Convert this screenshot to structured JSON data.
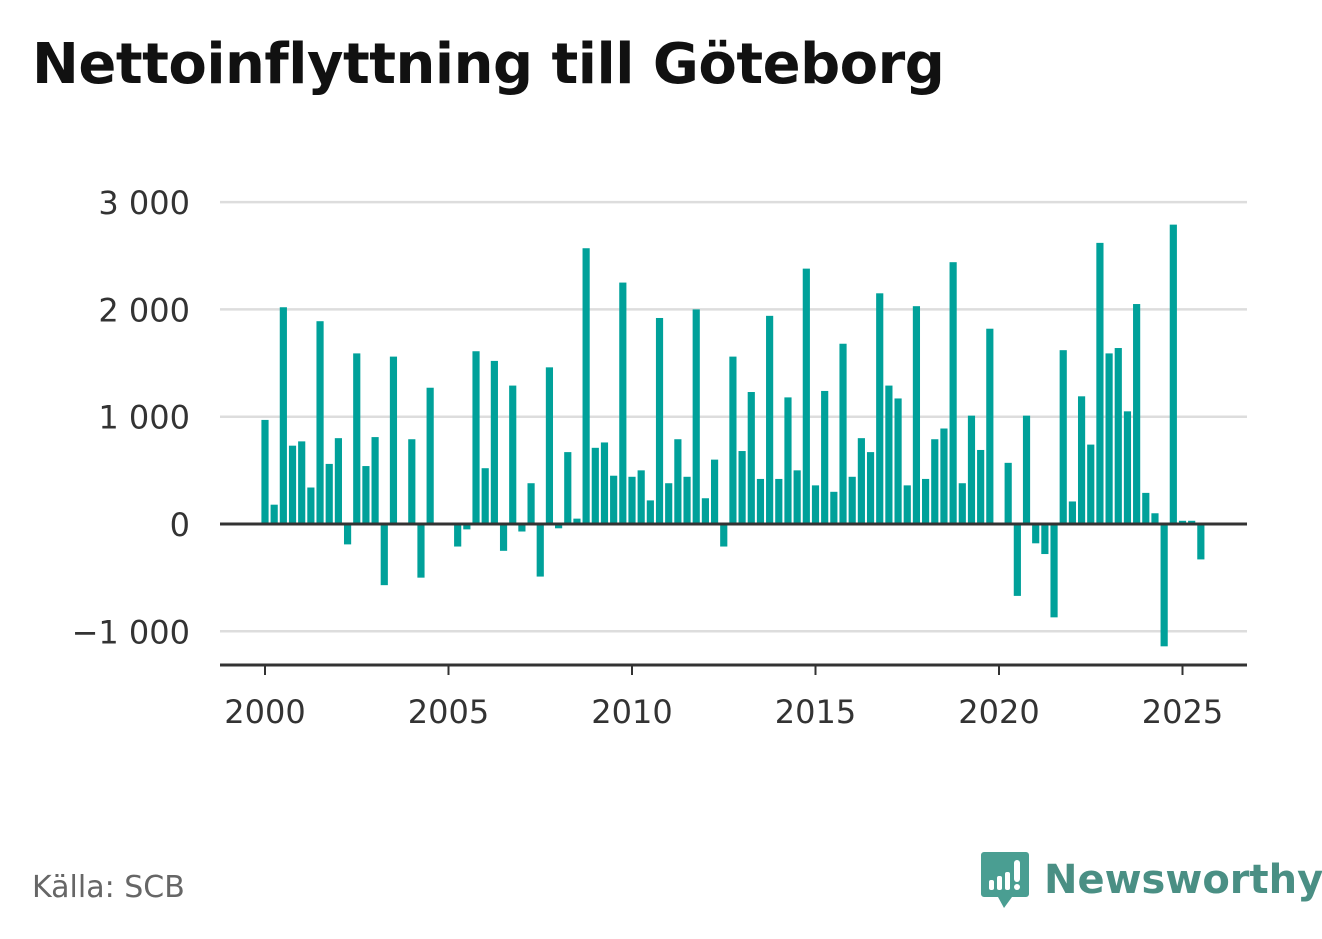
{
  "title": "Nettoinflyttning till Göteborg",
  "source": "Källa: SCB",
  "brand": "Newsworthy",
  "colors": {
    "bar": "#00a19a",
    "axis": "#333333",
    "grid": "#dddddd",
    "text": "#333333"
  },
  "chart_data": {
    "type": "bar",
    "x_start": 2000.0,
    "x_step": 0.25,
    "x_ticks": [
      2000,
      2005,
      2010,
      2015,
      2020,
      2025
    ],
    "x_tick_labels": [
      "2000",
      "2005",
      "2010",
      "2015",
      "2020",
      "2025"
    ],
    "y_ticks": [
      -1000,
      0,
      1000,
      2000,
      3000
    ],
    "y_tick_labels": [
      "−1 000",
      "0",
      "1 000",
      "2 000",
      "3 000"
    ],
    "ylim": [
      -1300,
      3150
    ],
    "xlim": [
      1998.75,
      2026.75
    ],
    "values": [
      970,
      180,
      2020,
      730,
      770,
      340,
      1890,
      560,
      800,
      -190,
      1590,
      540,
      810,
      -570,
      1560,
      0,
      790,
      -500,
      1270,
      0,
      0,
      -210,
      -50,
      1610,
      520,
      1520,
      -250,
      1290,
      -70,
      380,
      -490,
      1460,
      -40,
      670,
      50,
      2570,
      710,
      760,
      450,
      2250,
      440,
      500,
      220,
      1920,
      380,
      790,
      440,
      2000,
      240,
      600,
      -210,
      1560,
      680,
      1230,
      420,
      1940,
      420,
      1180,
      500,
      2380,
      360,
      1240,
      300,
      1680,
      440,
      800,
      670,
      2150,
      1290,
      1170,
      360,
      2030,
      420,
      790,
      890,
      2440,
      380,
      1010,
      690,
      1820,
      0,
      570,
      -670,
      1010,
      -180,
      -280,
      -870,
      1620,
      210,
      1190,
      740,
      2620,
      1590,
      1640,
      1050,
      2050,
      290,
      100,
      -1140,
      2790,
      30,
      30,
      -330
    ]
  }
}
